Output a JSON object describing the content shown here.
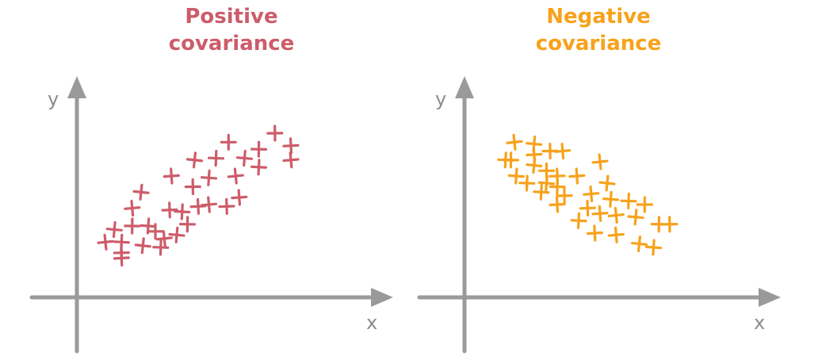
{
  "colors": {
    "positive": "#cd5c6a",
    "negative": "#f7a21b",
    "axis": "#9a9a9a",
    "axis_label": "#8c8c8c"
  },
  "chart_data": [
    {
      "type": "scatter",
      "title_lines": [
        "Positive",
        "covariance"
      ],
      "xlabel": "x",
      "ylabel": "y",
      "marker": "plus",
      "color": "#cd5c6a",
      "xlim": [
        0,
        20
      ],
      "ylim": [
        0,
        12
      ],
      "points": [
        [
          1.6,
          3.1
        ],
        [
          2.1,
          3.8
        ],
        [
          2.5,
          3.1
        ],
        [
          3.1,
          4.0
        ],
        [
          2.5,
          2.5
        ],
        [
          2.5,
          2.2
        ],
        [
          3.1,
          5.0
        ],
        [
          3.6,
          5.9
        ],
        [
          4.0,
          4.0
        ],
        [
          4.7,
          2.8
        ],
        [
          4.4,
          3.7
        ],
        [
          5.2,
          4.9
        ],
        [
          5.3,
          6.8
        ],
        [
          4.9,
          3.3
        ],
        [
          5.6,
          3.5
        ],
        [
          5.9,
          4.8
        ],
        [
          6.2,
          4.1
        ],
        [
          6.5,
          6.2
        ],
        [
          6.8,
          5.1
        ],
        [
          7.4,
          5.2
        ],
        [
          6.6,
          7.7
        ],
        [
          7.4,
          6.7
        ],
        [
          7.8,
          7.8
        ],
        [
          8.5,
          8.7
        ],
        [
          8.4,
          5.1
        ],
        [
          9.1,
          5.6
        ],
        [
          8.9,
          6.8
        ],
        [
          9.4,
          7.8
        ],
        [
          10.2,
          7.3
        ],
        [
          10.2,
          8.3
        ],
        [
          11.1,
          9.2
        ],
        [
          12.0,
          8.5
        ],
        [
          12.0,
          7.7
        ],
        [
          3.7,
          2.9
        ]
      ]
    },
    {
      "type": "scatter",
      "title_lines": [
        "Negative",
        "covariance"
      ],
      "xlabel": "x",
      "ylabel": "y",
      "marker": "plus",
      "color": "#f7a21b",
      "xlim": [
        0,
        20
      ],
      "ylim": [
        0,
        12
      ],
      "points": [
        [
          2.8,
          8.7
        ],
        [
          3.9,
          8.6
        ],
        [
          2.3,
          7.7
        ],
        [
          2.6,
          7.7
        ],
        [
          4.8,
          8.2
        ],
        [
          3.9,
          8.0
        ],
        [
          5.5,
          8.2
        ],
        [
          3.9,
          7.4
        ],
        [
          2.9,
          6.8
        ],
        [
          3.5,
          6.4
        ],
        [
          4.6,
          7.1
        ],
        [
          5.2,
          6.8
        ],
        [
          6.3,
          6.8
        ],
        [
          7.6,
          7.6
        ],
        [
          4.6,
          6.4
        ],
        [
          4.3,
          5.9
        ],
        [
          5.2,
          6.2
        ],
        [
          5.6,
          5.7
        ],
        [
          5.2,
          5.2
        ],
        [
          7.1,
          5.8
        ],
        [
          8.0,
          6.4
        ],
        [
          8.2,
          5.5
        ],
        [
          9.2,
          5.4
        ],
        [
          10.1,
          5.2
        ],
        [
          6.9,
          5.0
        ],
        [
          7.6,
          4.7
        ],
        [
          8.5,
          4.6
        ],
        [
          9.6,
          4.5
        ],
        [
          6.4,
          4.3
        ],
        [
          10.9,
          4.1
        ],
        [
          11.5,
          4.1
        ],
        [
          7.3,
          3.6
        ],
        [
          8.5,
          3.5
        ],
        [
          9.8,
          3.0
        ],
        [
          10.6,
          2.8
        ]
      ]
    }
  ]
}
